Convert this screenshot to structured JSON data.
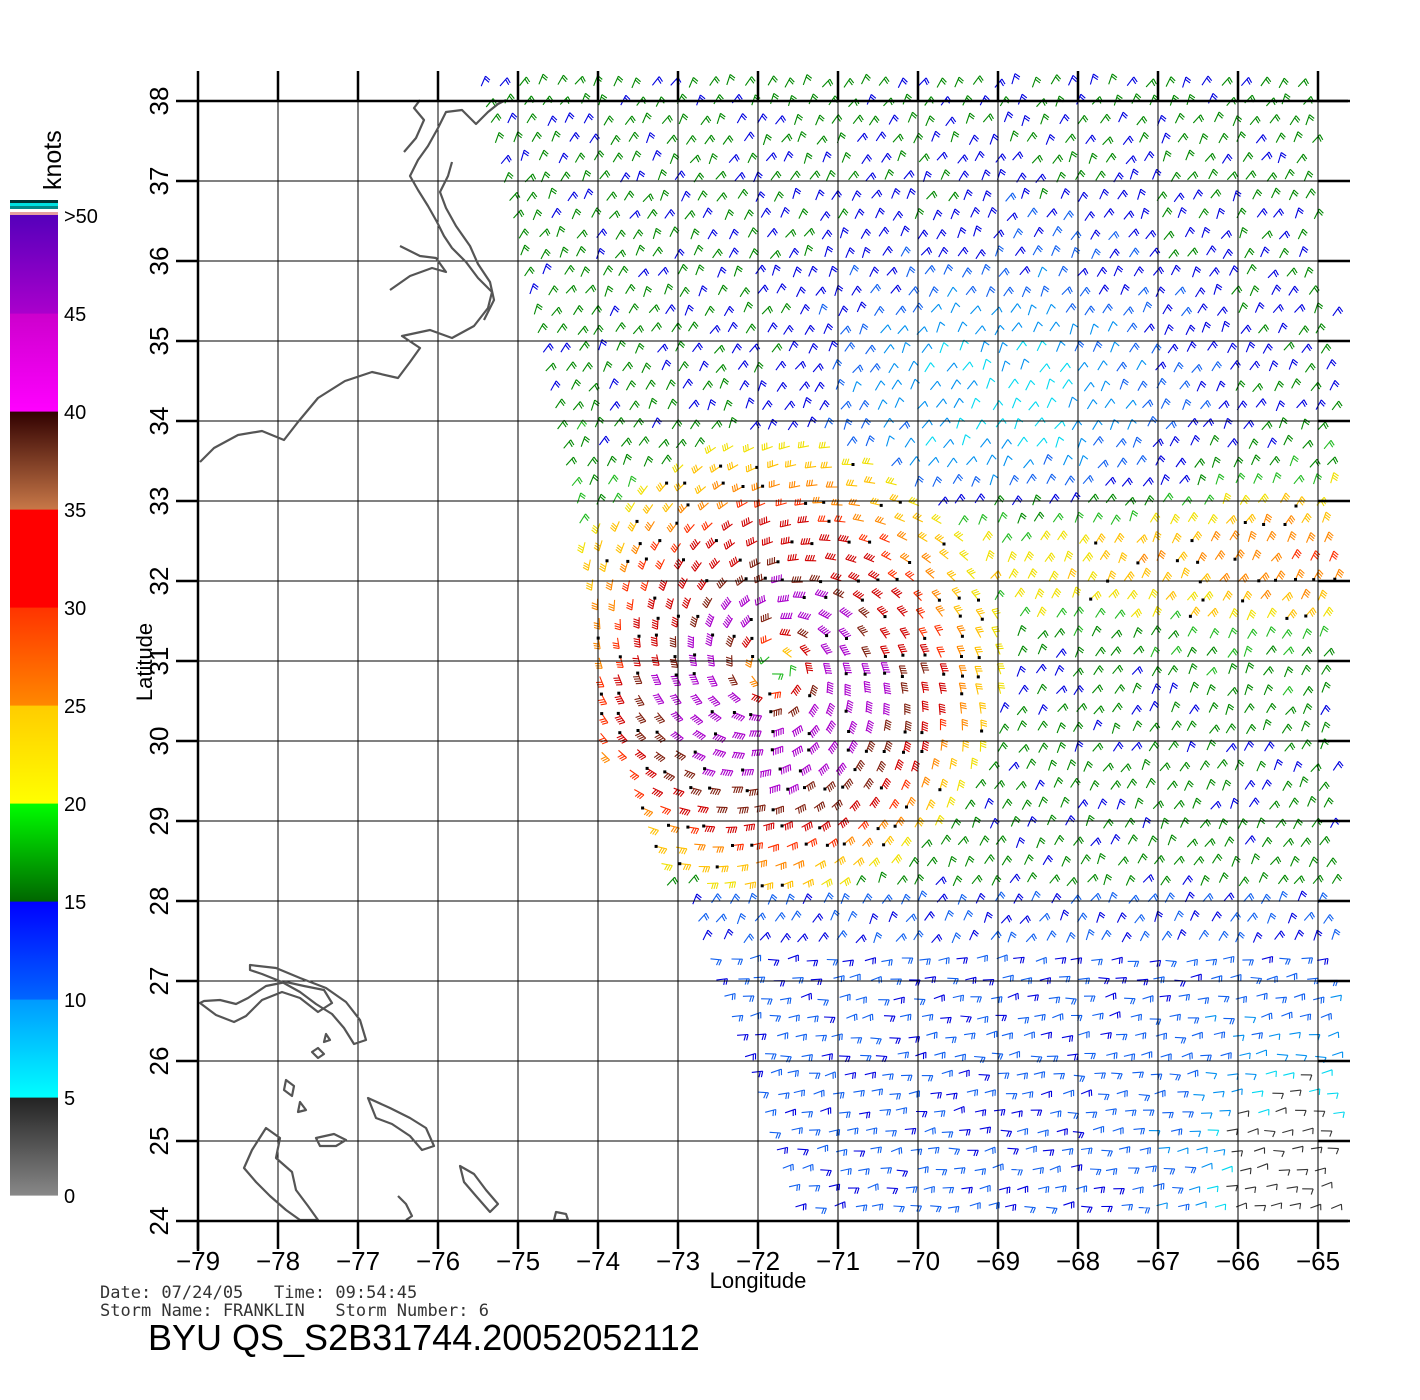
{
  "map": {
    "x_label": "Longitude",
    "y_label": "Latitude",
    "lon_ticks": [
      "-79",
      "-78",
      "-77",
      "-76",
      "-75",
      "-74",
      "-73",
      "-72",
      "-71",
      "-70",
      "-69",
      "-68",
      "-67",
      "-66",
      "-65"
    ],
    "lat_ticks": [
      "24",
      "25",
      "26",
      "27",
      "28",
      "29",
      "30",
      "31",
      "32",
      "33",
      "34",
      "35",
      "36",
      "37",
      "38"
    ],
    "lon_range": [
      -79,
      -65
    ],
    "lat_range": [
      24,
      38
    ],
    "grid": true,
    "coastline_color": "#555555"
  },
  "colorbar": {
    "unit_label": "knots",
    "labels": [
      "0",
      "5",
      "10",
      "15",
      "20",
      "25",
      "30",
      "35",
      "40",
      "45",
      ">50"
    ],
    "bands": [
      {
        "from": 0,
        "to": 5,
        "colors": [
          "#888888",
          "#222222"
        ]
      },
      {
        "from": 5,
        "to": 10,
        "colors": [
          "#00ffff",
          "#0099ff"
        ]
      },
      {
        "from": 10,
        "to": 15,
        "colors": [
          "#0066ff",
          "#0000ff"
        ]
      },
      {
        "from": 15,
        "to": 20,
        "colors": [
          "#006600",
          "#00ff00"
        ]
      },
      {
        "from": 20,
        "to": 25,
        "colors": [
          "#ffff00",
          "#ffcc00"
        ]
      },
      {
        "from": 25,
        "to": 30,
        "colors": [
          "#ff8800",
          "#ff3300"
        ]
      },
      {
        "from": 30,
        "to": 35,
        "colors": [
          "#ff0000",
          "#ff0000"
        ]
      },
      {
        "from": 35,
        "to": 40,
        "colors": [
          "#c87848",
          "#300000"
        ]
      },
      {
        "from": 40,
        "to": 45,
        "colors": [
          "#ff00ff",
          "#cc00cc"
        ]
      },
      {
        "from": 45,
        "to": 50,
        "colors": [
          "#aa00cc",
          "#5500bb"
        ]
      }
    ]
  },
  "storm": {
    "center_lon": -71.8,
    "center_lat": 30.9,
    "max_wind_knots": 45
  },
  "footer": {
    "date_line": "Date: 07/24/05   Time: 09:54:45",
    "storm_line": "Storm Name: FRANKLIN   Storm Number: 6",
    "file_title": "BYU QS_S2B31744.20052052112"
  }
}
